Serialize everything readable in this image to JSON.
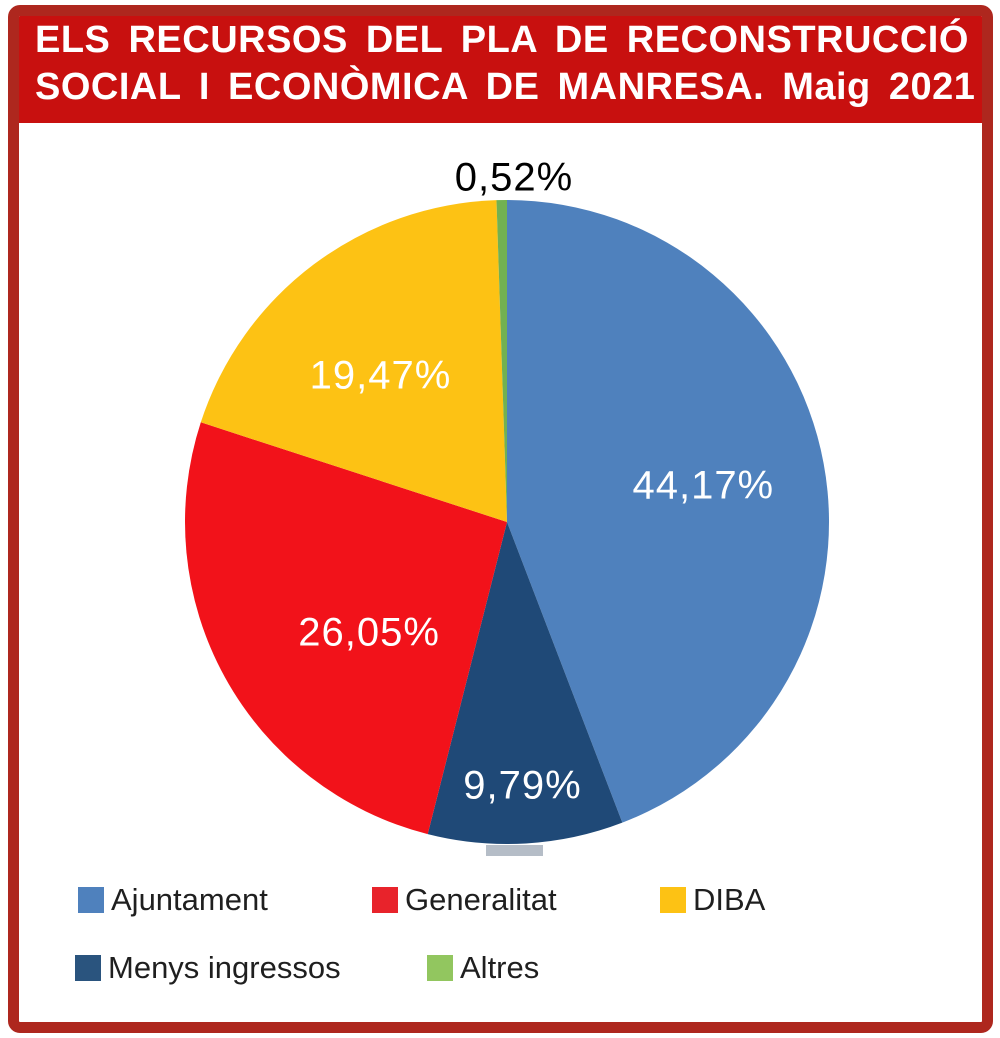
{
  "title": {
    "line1": "ELS RECURSOS DEL PLA DE RECONSTRUCCIÓ",
    "line2": "SOCIAL I ECONÒMICA DE MANRESA. Maig 2021"
  },
  "chart_data": {
    "type": "pie",
    "title": "ELS RECURSOS DEL PLA DE RECONSTRUCCIÓ SOCIAL I ECONÒMICA DE MANRESA. Maig 2021",
    "unit": "%",
    "decimal_separator": ",",
    "start_angle": "12 o'clock",
    "direction": "clockwise",
    "slices": [
      {
        "label": "Ajuntament",
        "value": 44.17,
        "display": "44,17%",
        "color": "#4f81bd"
      },
      {
        "label": "Menys ingressos",
        "value": 9.79,
        "display": "9,79%",
        "color": "#1f4977",
        "legend_color": "#2a547e"
      },
      {
        "label": "Generalitat",
        "value": 26.05,
        "display": "26,05%",
        "color": "#f2121a",
        "legend_color": "#e8232b"
      },
      {
        "label": "DIBA",
        "value": 19.47,
        "display": "19,47%",
        "color": "#fdc214"
      },
      {
        "label": "Altres",
        "value": 0.52,
        "display": "0,52%",
        "color": "#72b151",
        "legend_color": "#92c65f"
      }
    ],
    "legend": {
      "position": "bottom",
      "rows": [
        [
          "Ajuntament",
          "Generalitat",
          "DIBA"
        ],
        [
          "Menys ingressos",
          "Altres"
        ]
      ]
    }
  },
  "colors": {
    "banner_bg": "#c8100f",
    "frame_border": "#ae271e",
    "label_light": "#ffffff",
    "label_dark": "#000000",
    "legend_text": "#1f1f1f"
  }
}
